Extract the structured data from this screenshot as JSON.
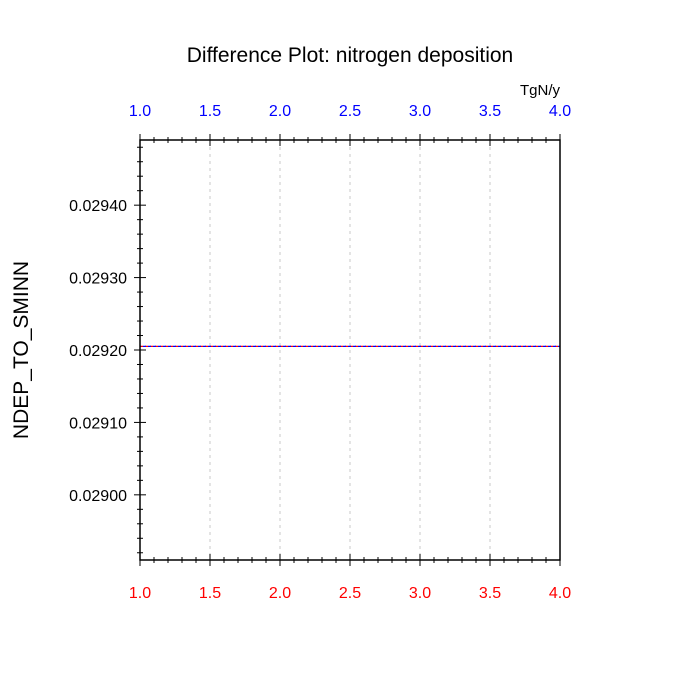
{
  "chart_data": {
    "type": "line",
    "title": "Difference Plot: nitrogen deposition",
    "units": "TgN/y",
    "ylabel": "NDEP_TO_SMINN",
    "xlim": [
      1.0,
      4.0
    ],
    "ylim": [
      0.02891,
      0.02949
    ],
    "x_ticks": [
      "1.0",
      "1.5",
      "2.0",
      "2.5",
      "3.0",
      "3.5",
      "4.0"
    ],
    "y_ticks": [
      "0.02900",
      "0.02910",
      "0.02920",
      "0.02930",
      "0.02940"
    ],
    "grid": true,
    "colors": {
      "top_tick_labels": "#0000ff",
      "bottom_tick_labels": "#ff0000",
      "series_a": "#0000ff",
      "series_b": "#ff0000"
    },
    "series": [
      {
        "x": [
          1.0,
          4.0
        ],
        "values": [
          0.029205,
          0.029205
        ]
      },
      {
        "x": [
          1.0,
          4.0
        ],
        "values": [
          0.029205,
          0.029205
        ]
      }
    ]
  }
}
